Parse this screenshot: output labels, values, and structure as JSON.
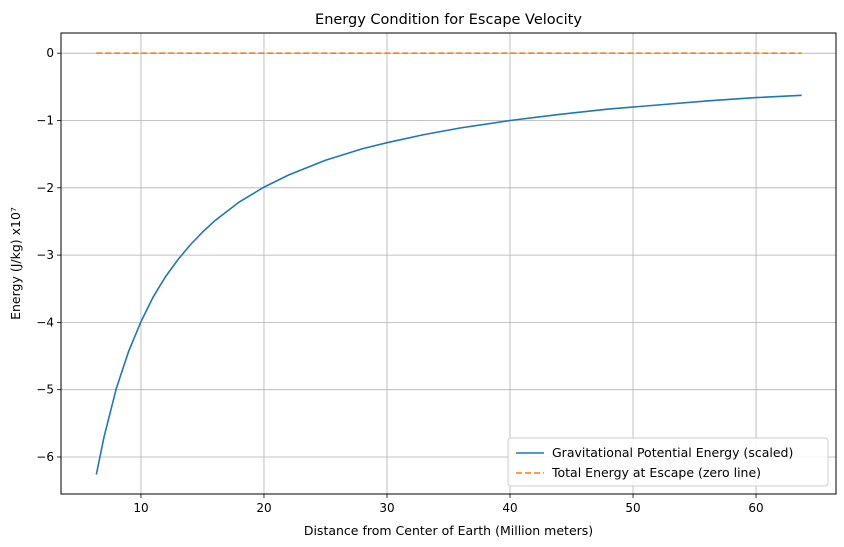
{
  "chart_data": {
    "type": "line",
    "title": "Energy Condition for Escape Velocity",
    "xlabel": "Distance from Center of Earth (Million meters)",
    "ylabel": "Energy (J/kg) x10⁷",
    "xlim": [
      3.5,
      66.5
    ],
    "ylim": [
      -6.55,
      0.3
    ],
    "xticks": [
      10,
      20,
      30,
      40,
      50,
      60
    ],
    "yticks": [
      0,
      -1,
      -2,
      -3,
      -4,
      -5,
      -6
    ],
    "ytick_labels": [
      "0",
      "−1",
      "−2",
      "−3",
      "−4",
      "−5",
      "−6"
    ],
    "grid": true,
    "legend": "lower-right",
    "series": [
      {
        "name": "Gravitational Potential Energy (scaled)",
        "color": "#1f77b4",
        "style": "solid",
        "x": [
          6.371,
          7,
          8,
          9,
          10,
          11,
          12,
          13,
          14,
          15,
          16,
          18,
          20,
          22,
          25,
          28,
          30,
          33,
          36,
          40,
          44,
          48,
          52,
          56,
          60,
          63.71
        ],
        "y": [
          -6.26,
          -5.7,
          -4.98,
          -4.43,
          -3.99,
          -3.62,
          -3.32,
          -3.07,
          -2.85,
          -2.66,
          -2.49,
          -2.21,
          -1.99,
          -1.81,
          -1.59,
          -1.42,
          -1.33,
          -1.21,
          -1.11,
          -1.0,
          -0.91,
          -0.83,
          -0.77,
          -0.71,
          -0.66,
          -0.626
        ]
      },
      {
        "name": "Total Energy at Escape (zero line)",
        "color": "#ff7f0e",
        "style": "dashed",
        "x": [
          6.371,
          63.71
        ],
        "y": [
          0,
          0
        ]
      }
    ]
  }
}
